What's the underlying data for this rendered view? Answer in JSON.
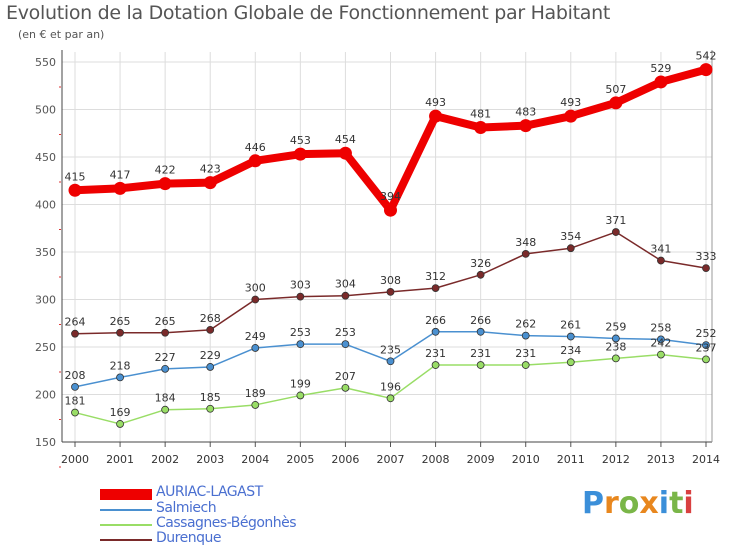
{
  "title": "Evolution de la Dotation Globale de Fonctionnement par Habitant",
  "subtitle": "(en € et par an)",
  "logo": {
    "text": "Proxiti",
    "colors": [
      "#3b8fd9",
      "#e8871e",
      "#7ab648",
      "#e8871e",
      "#3b8fd9",
      "#7ab648",
      "#d94040"
    ]
  },
  "chart_data": {
    "type": "line",
    "x": [
      2000,
      2001,
      2002,
      2003,
      2004,
      2005,
      2006,
      2007,
      2008,
      2009,
      2010,
      2011,
      2012,
      2013,
      2014
    ],
    "xlabels": [
      "2000",
      "2001",
      "2002",
      "2003",
      "2004",
      "2005",
      "2006",
      "2007",
      "2008",
      "2009",
      "2010",
      "2011",
      "2012",
      "2013",
      "2014"
    ],
    "ylim": [
      150,
      550
    ],
    "yticks": [
      150,
      200,
      250,
      300,
      350,
      400,
      450,
      500,
      550
    ],
    "grid": true,
    "legend_position": "bottom-left",
    "series": [
      {
        "name": "AURIAC-LAGAST",
        "color": "#ee0000",
        "values": [
          415,
          417,
          422,
          423,
          446,
          453,
          454,
          394,
          493,
          481,
          483,
          493,
          507,
          529,
          542
        ],
        "labels": [
          "415",
          "417",
          "422",
          "423",
          "446",
          "453",
          "454",
          "394",
          "493",
          "481",
          "483",
          "493",
          "507",
          "529",
          "542"
        ]
      },
      {
        "name": "Salmiech",
        "color": "#4a90d0",
        "values": [
          208,
          218,
          227,
          229,
          249,
          253,
          253,
          235,
          266,
          266,
          262,
          261,
          259,
          258,
          252
        ],
        "labels": [
          "208",
          "218",
          "227",
          "229",
          "249",
          "253",
          "253",
          "235",
          "266",
          "266",
          "262",
          "261",
          "259",
          "258",
          "252"
        ]
      },
      {
        "name": "Cassagnes-Bégonhès",
        "color": "#99dd66",
        "values": [
          181,
          169,
          184,
          185,
          189,
          199,
          207,
          196,
          231,
          231,
          231,
          234,
          238,
          242,
          237
        ],
        "labels": [
          "181",
          "169",
          "184",
          "185",
          "189",
          "199",
          "207",
          "196",
          "231",
          "231",
          "231",
          "234",
          "238",
          "242",
          "237"
        ]
      },
      {
        "name": "Durenque",
        "color": "#7a2a2a",
        "values": [
          264,
          265,
          265,
          268,
          300,
          303,
          304,
          308,
          312,
          326,
          348,
          354,
          371,
          341,
          333
        ],
        "labels": [
          "264",
          "265",
          "265",
          "268",
          "300",
          "303",
          "304",
          "308",
          "312",
          "326",
          "348",
          "354",
          "371",
          "341",
          "333"
        ]
      }
    ]
  }
}
